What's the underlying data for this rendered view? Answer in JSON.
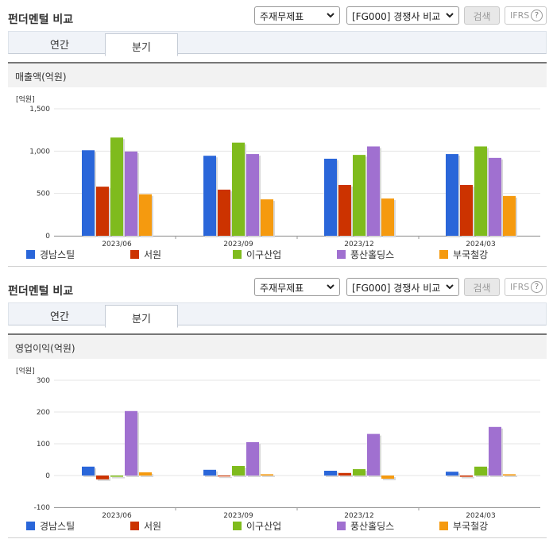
{
  "controls": {
    "title": "펀더멘털 비교",
    "select_1": "주재무제표",
    "select_2": "[FG000] 경쟁사 비교",
    "search_label": "검색",
    "ifrs_label": "IFRS",
    "help_glyph": "?",
    "tabs": [
      "연간",
      "분기"
    ],
    "active_tab": "분기"
  },
  "colors": {
    "series": [
      "#2a66d9",
      "#cc3300",
      "#7fbb1d",
      "#a070d0",
      "#f59a0f"
    ]
  },
  "chart_data": [
    {
      "type": "bar",
      "title": "매출액(억원)",
      "unit_label": "[억원]",
      "categories": [
        "2023/06",
        "2023/09",
        "2023/12",
        "2024/03"
      ],
      "ylim": [
        0,
        1500
      ],
      "yticks": [
        0,
        500,
        1000,
        1500
      ],
      "ytick_labels": [
        "0",
        "500",
        "1,000",
        "1,500"
      ],
      "grid": true,
      "legend_position": "bottom",
      "series": [
        {
          "name": "경남스틸",
          "values": [
            1010,
            945,
            910,
            965
          ]
        },
        {
          "name": "서원",
          "values": [
            580,
            545,
            600,
            600
          ]
        },
        {
          "name": "이구산업",
          "values": [
            1160,
            1100,
            955,
            1055
          ]
        },
        {
          "name": "풍산홀딩스",
          "values": [
            995,
            965,
            1055,
            920
          ]
        },
        {
          "name": "부국철강",
          "values": [
            490,
            430,
            440,
            470
          ]
        }
      ]
    },
    {
      "type": "bar",
      "title": "영업이익(억원)",
      "unit_label": "[억원]",
      "categories": [
        "2023/06",
        "2023/09",
        "2023/12",
        "2024/03"
      ],
      "ylim": [
        -100,
        300
      ],
      "yticks": [
        -100,
        0,
        100,
        200,
        300
      ],
      "ytick_labels": [
        "-100",
        "0",
        "100",
        "200",
        "300"
      ],
      "grid": true,
      "legend_position": "bottom",
      "series": [
        {
          "name": "경남스틸",
          "values": [
            28,
            18,
            15,
            12
          ]
        },
        {
          "name": "서원",
          "values": [
            -12,
            -3,
            8,
            -4
          ]
        },
        {
          "name": "이구산업",
          "values": [
            -4,
            30,
            20,
            28
          ]
        },
        {
          "name": "풍산홀딩스",
          "values": [
            203,
            105,
            131,
            153
          ]
        },
        {
          "name": "부국철강",
          "values": [
            10,
            4,
            -10,
            4
          ]
        }
      ]
    }
  ]
}
